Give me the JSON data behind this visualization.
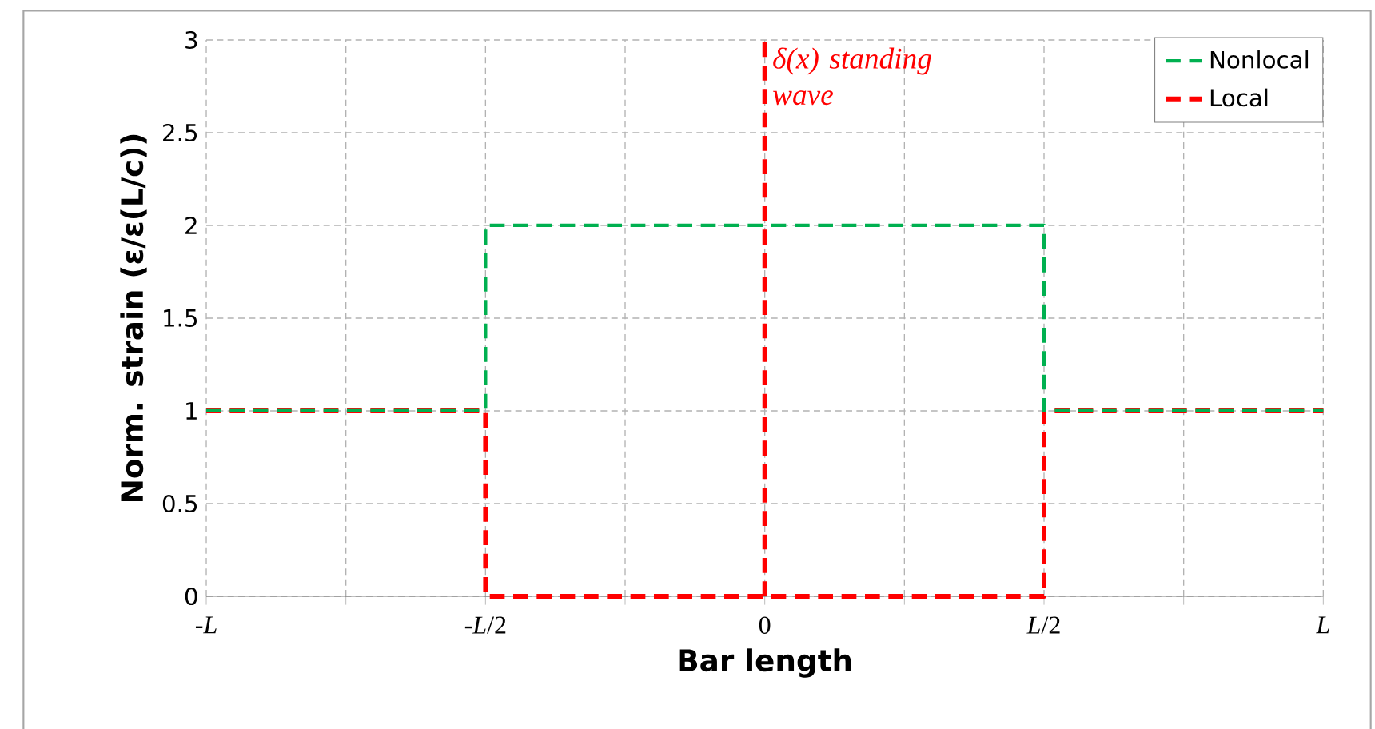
{
  "chart_data": {
    "type": "step",
    "xlabel": "Bar length",
    "ylabel": "Norm. strain (ε/ε(L/c))",
    "categories": [
      "-*L*",
      null,
      "-*L*/2",
      null,
      "0",
      null,
      "*L*/2",
      null,
      "*L*"
    ],
    "ylim": [
      0,
      3
    ],
    "yticks": [
      0,
      0.5,
      1,
      1.5,
      2,
      2.5,
      3
    ],
    "grid": true,
    "legend": "top right",
    "line_style": "dashed",
    "marker": "none",
    "series": [
      {
        "name": "Nonlocal",
        "color": "#00b050",
        "values": [
          1,
          1,
          2,
          2,
          2,
          2,
          1,
          1,
          1
        ]
      },
      {
        "name": "Local",
        "color": "#ff0000",
        "values": [
          1,
          1,
          0,
          0,
          0,
          0,
          1,
          1,
          1
        ]
      }
    ],
    "ref_lines": [
      {
        "axis": "x",
        "value": "0",
        "label": "δ(x) standing wave",
        "color": "#ff0000",
        "line_style": "dashed"
      }
    ]
  }
}
